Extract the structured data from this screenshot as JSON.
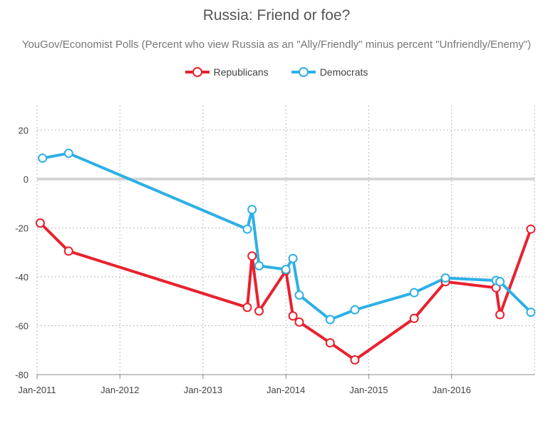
{
  "chart_data": {
    "type": "line",
    "title": "Russia: Friend or foe?",
    "subtitle": "YouGov/Economist Polls (Percent who view Russia as an \"Ally/Friendly\" minus percent \"Unfriendly/Enemy\")",
    "xlabel": "",
    "ylabel": "",
    "x_ticks": [
      "Jan-2011",
      "Jan-2012",
      "Jan-2013",
      "Jan-2014",
      "Jan-2015",
      "Jan-2016"
    ],
    "y_ticks": [
      20,
      0,
      -20,
      -40,
      -60,
      -80
    ],
    "ylim": [
      -80,
      30
    ],
    "xlim": [
      "2011-01-01",
      "2016-12-31"
    ],
    "grid": true,
    "legend_position": "top",
    "series": [
      {
        "name": "Republicans",
        "color": "#e8212e",
        "points": [
          [
            "2011-01-15",
            -18
          ],
          [
            "2011-05-20",
            -29.5
          ],
          [
            "2013-07-15",
            -52.5
          ],
          [
            "2013-08-05",
            -31.5
          ],
          [
            "2013-09-05",
            -54
          ],
          [
            "2014-01-01",
            -37.5
          ],
          [
            "2014-02-01",
            -56
          ],
          [
            "2014-03-01",
            -58.5
          ],
          [
            "2014-07-15",
            -67
          ],
          [
            "2014-11-01",
            -74
          ],
          [
            "2015-07-20",
            -57
          ],
          [
            "2015-12-05",
            -42
          ],
          [
            "2016-07-15",
            -44.5
          ],
          [
            "2016-08-01",
            -55.5
          ],
          [
            "2016-12-15",
            -20.5
          ]
        ]
      },
      {
        "name": "Democrats",
        "color": "#2db0e6",
        "points": [
          [
            "2011-01-25",
            8.5
          ],
          [
            "2011-05-20",
            10.5
          ],
          [
            "2013-07-15",
            -20.5
          ],
          [
            "2013-08-05",
            -12.5
          ],
          [
            "2013-09-05",
            -35.5
          ],
          [
            "2014-01-01",
            -37
          ],
          [
            "2014-02-01",
            -32.5
          ],
          [
            "2014-03-01",
            -47.5
          ],
          [
            "2014-07-15",
            -57.5
          ],
          [
            "2014-11-01",
            -53.5
          ],
          [
            "2015-07-20",
            -46.5
          ],
          [
            "2015-12-05",
            -40.5
          ],
          [
            "2016-07-15",
            -41.5
          ],
          [
            "2016-08-01",
            -42
          ],
          [
            "2016-12-15",
            -54.5
          ]
        ]
      }
    ]
  }
}
